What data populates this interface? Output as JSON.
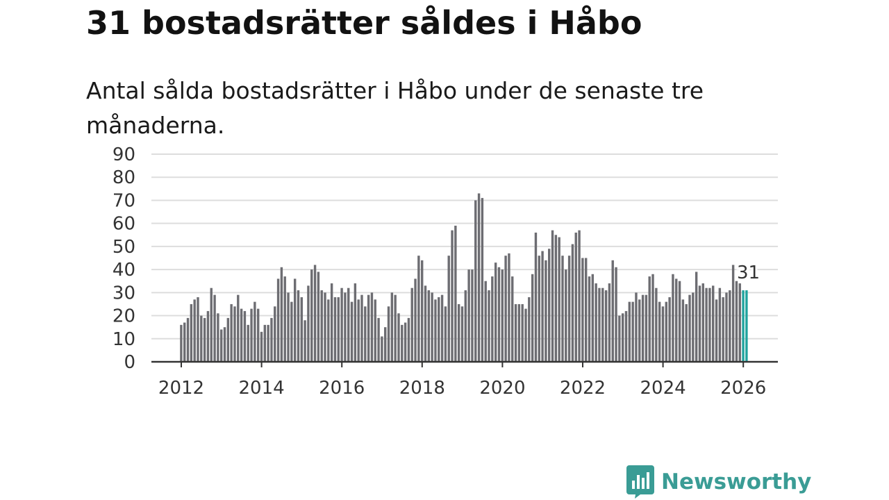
{
  "header": {
    "title": "31 bostadsrätter såldes i Håbo",
    "subtitle": "Antal sålda bostadsrätter i Håbo under de senaste tre månaderna."
  },
  "brand": {
    "name": "Newsworthy",
    "icon": "newsworthy-logo-icon",
    "color": "#3a9c95"
  },
  "colors": {
    "bar": "#6d6d72",
    "highlight": "#20a39e",
    "grid": "#dddddd",
    "axis": "#333333"
  },
  "chart_data": {
    "type": "bar",
    "title": "31 bostadsrätter såldes i Håbo",
    "xlabel": "",
    "ylabel": "",
    "ylim": [
      0,
      90
    ],
    "yticks": [
      0,
      10,
      20,
      30,
      40,
      50,
      60,
      70,
      80,
      90
    ],
    "xticks": [
      2012,
      2014,
      2016,
      2018,
      2020,
      2022,
      2024,
      2026
    ],
    "xlim": [
      2012,
      2026.25
    ],
    "start": 2012.0,
    "step": 0.08333,
    "grid": true,
    "values": [
      16,
      17,
      19,
      25,
      27,
      28,
      20,
      19,
      22,
      32,
      29,
      21,
      14,
      15,
      19,
      25,
      24,
      29,
      23,
      22,
      16,
      23,
      26,
      23,
      13,
      16,
      16,
      19,
      24,
      36,
      41,
      37,
      30,
      26,
      36,
      31,
      28,
      18,
      33,
      40,
      42,
      39,
      31,
      30,
      27,
      34,
      28,
      28,
      32,
      30,
      32,
      26,
      34,
      27,
      29,
      24,
      29,
      30,
      27,
      19,
      11,
      15,
      24,
      30,
      29,
      21,
      16,
      17,
      19,
      32,
      36,
      46,
      44,
      33,
      31,
      30,
      27,
      28,
      29,
      24,
      46,
      57,
      59,
      25,
      24,
      31,
      40,
      40,
      70,
      73,
      71,
      35,
      31,
      37,
      43,
      41,
      40,
      46,
      47,
      37,
      25,
      25,
      25,
      23,
      28,
      38,
      56,
      46,
      48,
      44,
      49,
      57,
      55,
      54,
      46,
      40,
      46,
      51,
      56,
      57,
      45,
      45,
      37,
      38,
      34,
      32,
      32,
      31,
      34,
      44,
      41,
      20,
      21,
      22,
      26,
      26,
      30,
      27,
      29,
      29,
      37,
      38,
      32,
      26,
      24,
      26,
      28,
      38,
      36,
      35,
      27,
      25,
      29,
      30,
      39,
      33,
      34,
      32,
      32,
      33,
      27,
      32,
      28,
      30,
      31,
      42,
      35,
      34,
      31,
      31
    ],
    "highlight_last": 2,
    "annotation": {
      "text": "31",
      "value": 31
    }
  }
}
